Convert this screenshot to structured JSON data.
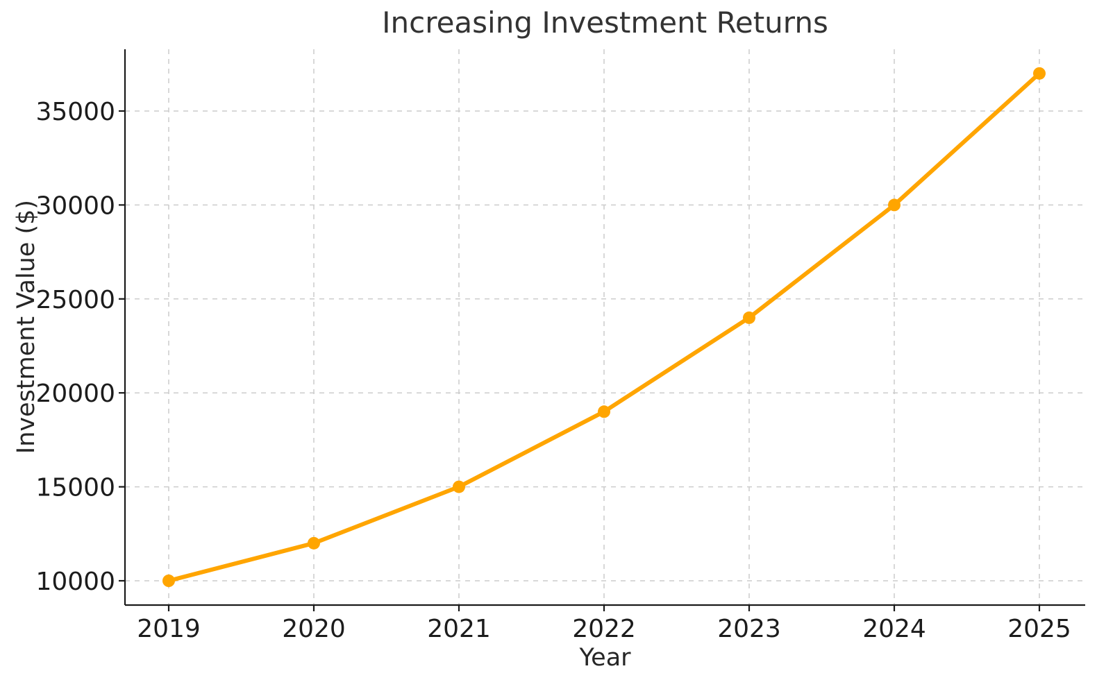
{
  "chart_data": {
    "type": "line",
    "title": "Increasing Investment Returns",
    "xlabel": "Year",
    "ylabel": "Investment Value ($)",
    "categories": [
      "2019",
      "2020",
      "2021",
      "2022",
      "2023",
      "2024",
      "2025"
    ],
    "series": [
      {
        "name": "Investment Value",
        "values": [
          10000,
          12000,
          15000,
          19000,
          24000,
          30000,
          37000
        ]
      }
    ],
    "y_ticks": [
      10000,
      15000,
      20000,
      25000,
      30000,
      35000
    ],
    "y_tick_labels": [
      "10000",
      "15000",
      "20000",
      "25000",
      "30000",
      "35000"
    ],
    "ylim": [
      8700,
      38300
    ],
    "grid": true,
    "grid_style": "dashed",
    "legend_position": "none",
    "marker": "circle",
    "line_color": "#FFA500",
    "marker_color": "#FFA500",
    "grid_color": "#cccccc",
    "spine_color": "#1a1a1a",
    "tick_text_color": "#1c1c1c",
    "title_color": "#333333"
  }
}
